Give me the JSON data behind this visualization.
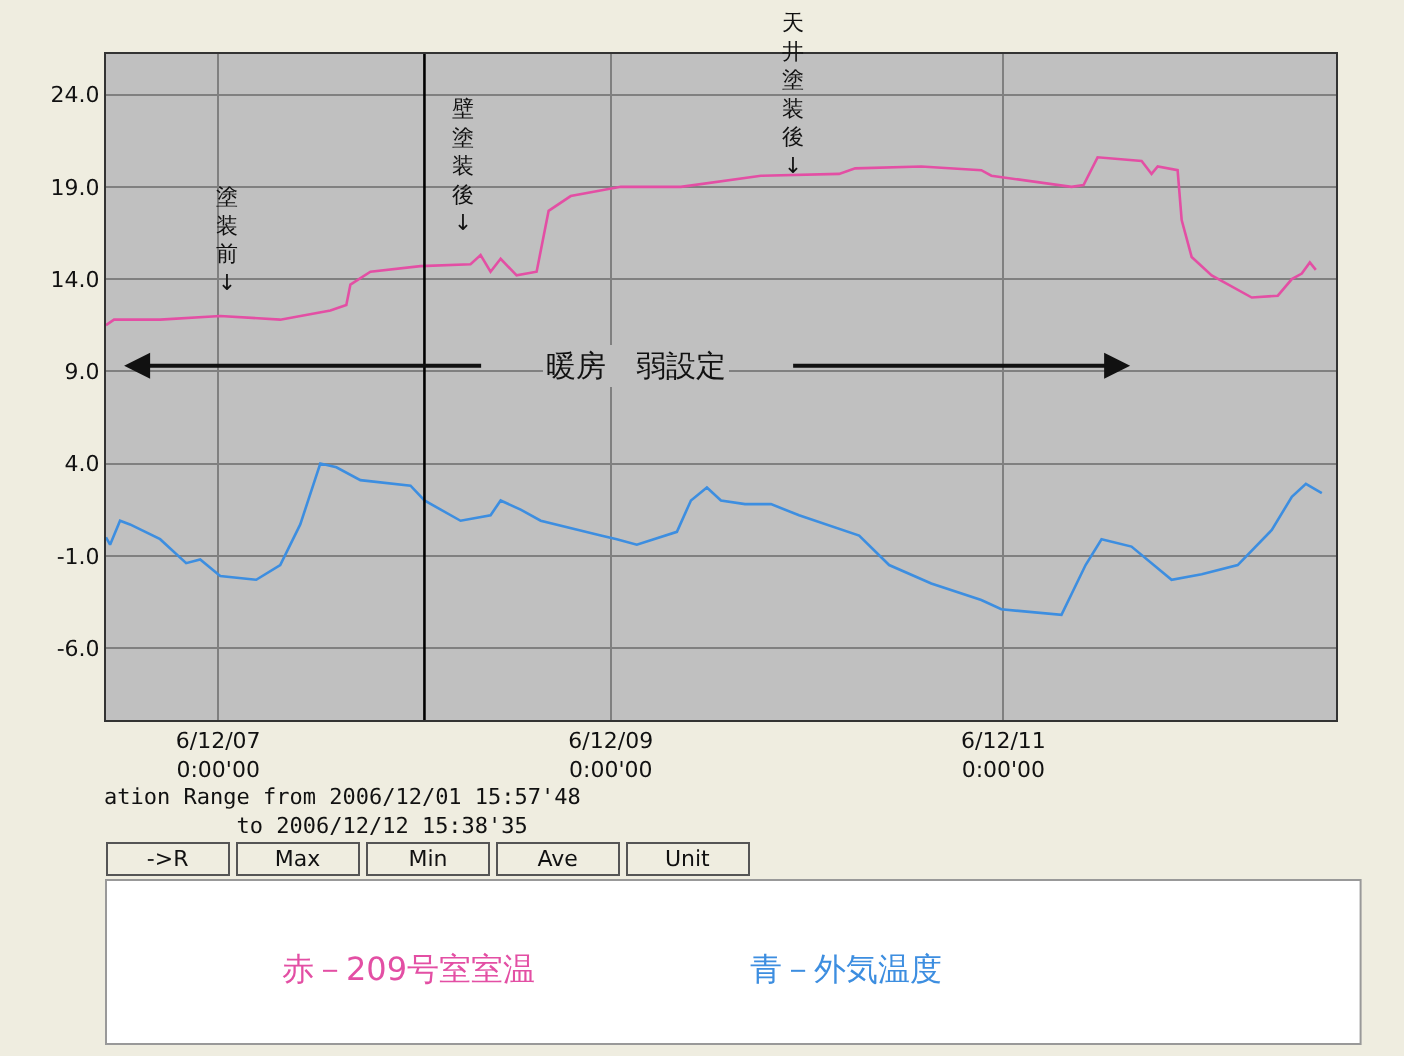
{
  "chart_data": {
    "type": "line",
    "xlim": [
      "2006-12-06T10:17",
      "2006-12-12T16:40"
    ],
    "ylim": [
      -9.9,
      26.2
    ],
    "xticks": [
      {
        "value": "2006-12-07",
        "label": "6/12/07\n0:00'00"
      },
      {
        "value": "2006-12-09",
        "label": "6/12/09\n0:00'00"
      },
      {
        "value": "2006-12-11",
        "label": "6/12/11\n0:00'00"
      }
    ],
    "yticks": [
      {
        "value": 24,
        "label": "24.0"
      },
      {
        "value": 19,
        "label": "19.0"
      },
      {
        "value": 14,
        "label": "14.0"
      },
      {
        "value": 9,
        "label": "9.0"
      },
      {
        "value": 4,
        "label": "4.0"
      },
      {
        "value": -1,
        "label": "-1.0"
      },
      {
        "value": -6,
        "label": "-6.0"
      }
    ],
    "grid": true,
    "legend": "bottom",
    "marker": "none",
    "line_style": "solid",
    "ref_lines": [
      {
        "axis": "x",
        "value": "2006-12-08T01:13",
        "color": "#000000"
      }
    ],
    "annotations": [
      "塗装前↓",
      "壁塗装後↓",
      "天井塗装後↓",
      "暖房　弱設定",
      "ation Range from 2006/12/01 15:57'48\n          to 2006/12/12 15:38'35",
      "->R",
      "Max",
      "Min",
      "Ave",
      "Unit"
    ],
    "series": [
      {
        "name": "赤－209号室室温",
        "color": "#e34fa4",
        "x": [
          "2006-12-06T10:17",
          "2006-12-06T11:16",
          "2006-12-06T12:29",
          "2006-12-06T16:54",
          "2006-12-07T00:15",
          "2006-12-07T07:35",
          "2006-12-07T13:43",
          "2006-12-07T15:40",
          "2006-12-07T16:10",
          "2006-12-07T18:37",
          "2006-12-08T00:44",
          "2006-12-08T06:51",
          "2006-12-08T08:05",
          "2006-12-08T09:18",
          "2006-12-08T10:32",
          "2006-12-08T12:29",
          "2006-12-08T14:56",
          "2006-12-08T16:24",
          "2006-12-08T19:06",
          "2006-12-09T01:13",
          "2006-12-09T06:51",
          "2006-12-09T08:34",
          "2006-12-09T18:22",
          "2006-12-10T03:55",
          "2006-12-10T05:53",
          "2006-12-10T13:58",
          "2006-12-10T21:18",
          "2006-12-10T22:32",
          "2006-12-11T08:20",
          "2006-12-11T09:48",
          "2006-12-11T11:31",
          "2006-12-11T16:54",
          "2006-12-11T18:07",
          "2006-12-11T18:52",
          "2006-12-11T21:18",
          "2006-12-11T21:48",
          "2006-12-11T23:01",
          "2006-12-12T01:28",
          "2006-12-12T06:22",
          "2006-12-12T09:33",
          "2006-12-12T11:16",
          "2006-12-12T12:29",
          "2006-12-12T13:28",
          "2006-12-12T14:12"
        ],
        "values": [
          11.5,
          11.8,
          11.8,
          11.8,
          12.0,
          11.8,
          12.3,
          12.6,
          13.7,
          14.4,
          14.7,
          14.8,
          15.3,
          14.4,
          15.1,
          14.2,
          14.4,
          17.7,
          18.5,
          19.0,
          19.0,
          19.0,
          19.6,
          19.7,
          20.0,
          20.1,
          19.9,
          19.6,
          19.0,
          19.1,
          20.6,
          20.4,
          19.7,
          20.1,
          19.9,
          17.2,
          15.2,
          14.2,
          13.0,
          13.1,
          14.0,
          14.3,
          14.9,
          14.5
        ]
      },
      {
        "name": "青－外気温度",
        "color": "#3d8ee0",
        "x": [
          "2006-12-06T10:17",
          "2006-12-06T10:47",
          "2006-12-06T12:00",
          "2006-12-06T13:13",
          "2006-12-06T16:54",
          "2006-12-06T20:05",
          "2006-12-06T21:48",
          "2006-12-07T00:15",
          "2006-12-07T04:39",
          "2006-12-07T07:35",
          "2006-12-07T10:02",
          "2006-12-07T12:29",
          "2006-12-07T14:27",
          "2006-12-07T17:23",
          "2006-12-07T23:31",
          "2006-12-08T01:13",
          "2006-12-08T05:38",
          "2006-12-08T09:18",
          "2006-12-08T10:32",
          "2006-12-08T12:59",
          "2006-12-08T15:26",
          "2006-12-08T22:47",
          "2006-12-09T00:44",
          "2006-12-09T03:11",
          "2006-12-09T08:05",
          "2006-12-09T09:48",
          "2006-12-09T11:45",
          "2006-12-09T13:28",
          "2006-12-09T16:25",
          "2006-12-09T19:35",
          "2006-12-09T23:01",
          "2006-12-10T06:22",
          "2006-12-10T10:02",
          "2006-12-10T15:11",
          "2006-12-10T21:18",
          "2006-12-10T23:45",
          "2006-12-11T02:12",
          "2006-12-11T07:06",
          "2006-12-11T10:03",
          "2006-12-11T12:00",
          "2006-12-11T15:40",
          "2006-12-11T20:34",
          "2006-12-12T00:15",
          "2006-12-12T04:39",
          "2006-12-12T08:49",
          "2006-12-12T11:16",
          "2006-12-12T12:59",
          "2006-12-12T14:56"
        ],
        "values": [
          0.0,
          -0.4,
          0.9,
          0.7,
          -0.1,
          -1.4,
          -1.2,
          -2.1,
          -2.3,
          -1.5,
          0.7,
          4.0,
          3.8,
          3.1,
          2.8,
          2.0,
          0.9,
          1.2,
          2.0,
          1.5,
          0.9,
          0.1,
          -0.1,
          -0.4,
          0.3,
          2.0,
          2.7,
          2.0,
          1.8,
          1.8,
          1.2,
          0.1,
          -1.5,
          -2.5,
          -3.4,
          -3.9,
          -4.0,
          -4.2,
          -1.5,
          -0.1,
          -0.5,
          -2.3,
          -2.0,
          -1.5,
          0.4,
          2.2,
          2.9,
          2.4
        ]
      }
    ]
  }
}
